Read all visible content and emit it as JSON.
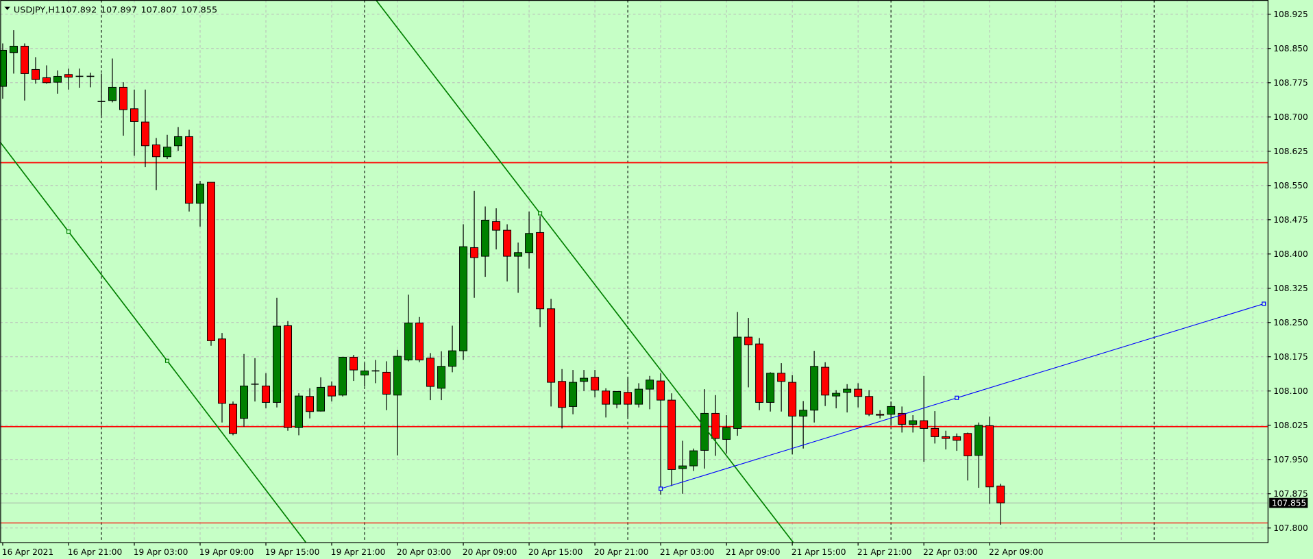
{
  "header": {
    "symbol": "USDJPY,H1",
    "open": "107.892",
    "high": "107.897",
    "low": "107.807",
    "close": "107.855"
  },
  "colors": {
    "background": "#c6ffc6",
    "bull_body": "#008000",
    "bear_body": "#ff0000",
    "grid": "#b8b8b8",
    "hline": "#ff0000",
    "trendline_down": "#008000",
    "trendline_up": "#0000ff"
  },
  "chart_data": {
    "type": "candlestick",
    "symbol": "USDJPY",
    "timeframe": "H1",
    "ylim": [
      107.775,
      108.96
    ],
    "grid": true,
    "price_ticks": [
      "108.925",
      "108.850",
      "108.775",
      "108.700",
      "108.625",
      "108.550",
      "108.475",
      "108.400",
      "108.325",
      "108.250",
      "108.175",
      "108.100",
      "108.025",
      "107.950",
      "107.875",
      "107.800"
    ],
    "time_labels": [
      {
        "time": "16 Apr 15:00",
        "label": "16 Apr 2021"
      },
      {
        "time": "16 Apr 21:00",
        "label": "16 Apr 21:00"
      },
      {
        "time": "19 Apr 03:00",
        "label": "19 Apr 03:00"
      },
      {
        "time": "19 Apr 09:00",
        "label": "19 Apr 09:00"
      },
      {
        "time": "19 Apr 15:00",
        "label": "19 Apr 15:00"
      },
      {
        "time": "19 Apr 21:00",
        "label": "19 Apr 21:00"
      },
      {
        "time": "20 Apr 03:00",
        "label": "20 Apr 03:00"
      },
      {
        "time": "20 Apr 09:00",
        "label": "20 Apr 09:00"
      },
      {
        "time": "20 Apr 15:00",
        "label": "20 Apr 15:00"
      },
      {
        "time": "20 Apr 21:00",
        "label": "20 Apr 21:00"
      },
      {
        "time": "21 Apr 03:00",
        "label": "21 Apr 03:00"
      },
      {
        "time": "21 Apr 09:00",
        "label": "21 Apr 09:00"
      },
      {
        "time": "21 Apr 15:00",
        "label": "21 Apr 15:00"
      },
      {
        "time": "21 Apr 21:00",
        "label": "21 Apr 21:00"
      },
      {
        "time": "22 Apr 03:00",
        "label": "22 Apr 03:00"
      },
      {
        "time": "22 Apr 09:00",
        "label": "22 Apr 09:00"
      }
    ],
    "current_price": "107.855",
    "candles_columns": [
      "time",
      "open",
      "high",
      "low",
      "close"
    ],
    "candles": [
      [
        "16 Apr 15:00",
        108.767,
        108.861,
        108.74,
        108.846
      ],
      [
        "16 Apr 16:00",
        108.841,
        108.89,
        108.795,
        108.855
      ],
      [
        "16 Apr 17:00",
        108.855,
        108.861,
        108.736,
        108.795
      ],
      [
        "16 Apr 18:00",
        108.804,
        108.831,
        108.773,
        108.782
      ],
      [
        "16 Apr 19:00",
        108.786,
        108.813,
        108.773,
        108.775
      ],
      [
        "16 Apr 20:00",
        108.776,
        108.802,
        108.751,
        108.789
      ],
      [
        "16 Apr 21:00",
        108.793,
        108.806,
        108.76,
        108.787
      ],
      [
        "16 Apr 22:00",
        108.789,
        108.806,
        108.764,
        108.789
      ],
      [
        "16 Apr 23:00",
        108.789,
        108.797,
        108.765,
        108.789
      ],
      [
        "19 Apr 00:00",
        108.734,
        108.795,
        108.703,
        108.734
      ],
      [
        "19 Apr 01:00",
        108.736,
        108.828,
        108.732,
        108.765
      ],
      [
        "19 Apr 02:00",
        108.765,
        108.776,
        108.659,
        108.716
      ],
      [
        "19 Apr 03:00",
        108.718,
        108.76,
        108.615,
        108.69
      ],
      [
        "19 Apr 04:00",
        108.689,
        108.76,
        108.59,
        108.637
      ],
      [
        "19 Apr 05:00",
        108.639,
        108.654,
        108.54,
        108.613
      ],
      [
        "19 Apr 06:00",
        108.613,
        108.661,
        108.608,
        108.634
      ],
      [
        "19 Apr 07:00",
        108.637,
        108.678,
        108.626,
        108.657
      ],
      [
        "19 Apr 08:00",
        108.657,
        108.672,
        108.493,
        108.511
      ],
      [
        "19 Apr 09:00",
        108.511,
        108.56,
        108.46,
        108.553
      ],
      [
        "19 Apr 10:00",
        108.557,
        108.557,
        108.199,
        108.21
      ],
      [
        "19 Apr 11:00",
        108.214,
        108.227,
        108.031,
        108.073
      ],
      [
        "19 Apr 12:00",
        108.071,
        108.077,
        108.003,
        108.007
      ],
      [
        "19 Apr 13:00",
        108.04,
        108.181,
        108.022,
        108.111
      ],
      [
        "19 Apr 14:00",
        108.115,
        108.172,
        108.077,
        108.115
      ],
      [
        "19 Apr 15:00",
        108.111,
        108.139,
        108.062,
        108.075
      ],
      [
        "19 Apr 16:00",
        108.075,
        108.304,
        108.064,
        108.242
      ],
      [
        "19 Apr 17:00",
        108.243,
        108.253,
        108.013,
        108.02
      ],
      [
        "19 Apr 18:00",
        108.02,
        108.095,
        108.003,
        108.089
      ],
      [
        "19 Apr 19:00",
        108.088,
        108.106,
        108.04,
        108.055
      ],
      [
        "19 Apr 20:00",
        108.056,
        108.13,
        108.055,
        108.108
      ],
      [
        "19 Apr 21:00",
        108.111,
        108.121,
        108.077,
        108.089
      ],
      [
        "19 Apr 22:00",
        108.091,
        108.174,
        108.088,
        108.174
      ],
      [
        "19 Apr 23:00",
        108.174,
        108.179,
        108.122,
        108.146
      ],
      [
        "20 Apr 00:00",
        108.135,
        108.161,
        108.11,
        108.144
      ],
      [
        "20 Apr 01:00",
        108.144,
        108.168,
        108.117,
        108.144
      ],
      [
        "20 Apr 02:00",
        108.141,
        108.165,
        108.058,
        108.093
      ],
      [
        "20 Apr 03:00",
        108.091,
        108.19,
        107.959,
        108.176
      ],
      [
        "20 Apr 04:00",
        108.168,
        108.311,
        108.165,
        108.249
      ],
      [
        "20 Apr 05:00",
        108.249,
        108.262,
        108.163,
        108.168
      ],
      [
        "20 Apr 06:00",
        108.172,
        108.183,
        108.08,
        108.11
      ],
      [
        "20 Apr 07:00",
        108.106,
        108.187,
        108.08,
        108.154
      ],
      [
        "20 Apr 08:00",
        108.154,
        108.243,
        108.141,
        108.188
      ],
      [
        "20 Apr 09:00",
        108.188,
        108.465,
        108.168,
        108.416
      ],
      [
        "20 Apr 10:00",
        108.414,
        108.538,
        108.304,
        108.392
      ],
      [
        "20 Apr 11:00",
        108.395,
        108.504,
        108.35,
        108.474
      ],
      [
        "20 Apr 12:00",
        108.471,
        108.5,
        108.41,
        108.452
      ],
      [
        "20 Apr 13:00",
        108.452,
        108.465,
        108.34,
        108.395
      ],
      [
        "20 Apr 14:00",
        108.395,
        108.425,
        108.315,
        108.403
      ],
      [
        "20 Apr 15:00",
        108.403,
        108.493,
        108.368,
        108.445
      ],
      [
        "20 Apr 16:00",
        108.447,
        108.483,
        108.24,
        108.28
      ],
      [
        "20 Apr 17:00",
        108.28,
        108.302,
        108.066,
        108.119
      ],
      [
        "20 Apr 18:00",
        108.121,
        108.148,
        108.018,
        108.064
      ],
      [
        "20 Apr 19:00",
        108.066,
        108.146,
        108.049,
        108.119
      ],
      [
        "20 Apr 20:00",
        108.121,
        108.146,
        108.1,
        108.128
      ],
      [
        "20 Apr 21:00",
        108.13,
        108.146,
        108.086,
        108.102
      ],
      [
        "20 Apr 22:00",
        108.1,
        108.106,
        108.042,
        108.071
      ],
      [
        "20 Apr 23:00",
        108.071,
        108.099,
        108.062,
        108.099
      ],
      [
        "21 Apr 00:00",
        108.097,
        108.13,
        108.042,
        108.071
      ],
      [
        "21 Apr 01:00",
        108.071,
        108.117,
        108.064,
        108.104
      ],
      [
        "21 Apr 02:00",
        108.104,
        108.133,
        108.06,
        108.124
      ],
      [
        "21 Apr 03:00",
        108.122,
        108.139,
        107.873,
        108.08
      ],
      [
        "21 Apr 04:00",
        108.08,
        108.095,
        107.892,
        107.928
      ],
      [
        "21 Apr 05:00",
        107.93,
        107.991,
        107.875,
        107.936
      ],
      [
        "21 Apr 06:00",
        107.936,
        107.974,
        107.925,
        107.969
      ],
      [
        "21 Apr 07:00",
        107.97,
        108.104,
        107.93,
        108.051
      ],
      [
        "21 Apr 08:00",
        108.051,
        108.091,
        107.958,
        107.996
      ],
      [
        "21 Apr 09:00",
        107.994,
        108.047,
        107.963,
        108.02
      ],
      [
        "21 Apr 10:00",
        108.018,
        108.273,
        108.002,
        108.218
      ],
      [
        "21 Apr 11:00",
        108.218,
        108.26,
        108.108,
        108.201
      ],
      [
        "21 Apr 12:00",
        108.203,
        108.216,
        108.058,
        108.075
      ],
      [
        "21 Apr 13:00",
        108.075,
        108.141,
        108.055,
        108.139
      ],
      [
        "21 Apr 14:00",
        108.139,
        108.161,
        108.055,
        108.121
      ],
      [
        "21 Apr 15:00",
        108.119,
        108.135,
        107.961,
        108.045
      ],
      [
        "21 Apr 16:00",
        108.045,
        108.078,
        107.974,
        108.058
      ],
      [
        "21 Apr 17:00",
        108.058,
        108.188,
        108.031,
        108.154
      ],
      [
        "21 Apr 18:00",
        108.152,
        108.163,
        108.067,
        108.091
      ],
      [
        "21 Apr 19:00",
        108.089,
        108.102,
        108.062,
        108.095
      ],
      [
        "21 Apr 20:00",
        108.097,
        108.115,
        108.053,
        108.104
      ],
      [
        "21 Apr 21:00",
        108.104,
        108.117,
        108.064,
        108.088
      ],
      [
        "21 Apr 22:00",
        108.088,
        108.102,
        108.045,
        108.049
      ],
      [
        "21 Apr 23:00",
        108.049,
        108.058,
        108.04,
        108.047
      ],
      [
        "22 Apr 00:00",
        108.049,
        108.077,
        108.024,
        108.066
      ],
      [
        "22 Apr 01:00",
        108.051,
        108.066,
        108.009,
        108.027
      ],
      [
        "22 Apr 02:00",
        108.027,
        108.047,
        108.009,
        108.035
      ],
      [
        "22 Apr 03:00",
        108.035,
        108.133,
        107.945,
        108.018
      ],
      [
        "22 Apr 04:00",
        108.018,
        108.056,
        107.985,
        108.0
      ],
      [
        "22 Apr 05:00",
        108.0,
        108.013,
        107.972,
        107.996
      ],
      [
        "22 Apr 06:00",
        108.0,
        108.007,
        107.969,
        107.992
      ],
      [
        "22 Apr 07:00",
        108.007,
        108.009,
        107.904,
        107.958
      ],
      [
        "22 Apr 08:00",
        107.959,
        108.031,
        107.888,
        108.025
      ],
      [
        "22 Apr 09:00",
        108.024,
        108.044,
        107.853,
        107.89
      ],
      [
        "22 Apr 10:00",
        107.892,
        107.897,
        107.807,
        107.855
      ]
    ],
    "horizontal_lines": [
      {
        "price": 108.6,
        "color": "#ff0000"
      },
      {
        "price": 108.022,
        "color": "#ff0000"
      },
      {
        "price": 107.811,
        "color": "#ff0000"
      }
    ],
    "trendlines": [
      {
        "color": "#008000",
        "extend": true,
        "points": [
          {
            "time": "16 Apr 21:00",
            "price": 108.449
          },
          {
            "time": "19 Apr 06:00",
            "price": 108.166
          }
        ],
        "markers": [
          0,
          1
        ]
      },
      {
        "color": "#008000",
        "extend": true,
        "points": [
          {
            "time": "20 Apr 16:00",
            "price": 108.489
          },
          {
            "time": "21 Apr 15:00",
            "price": 107.771
          }
        ],
        "markers": [
          0
        ]
      },
      {
        "color": "#0000ff",
        "extend": false,
        "points": [
          {
            "time": "21 Apr 03:00",
            "price": 107.886
          },
          {
            "time": "22 Apr 06:00",
            "price": 108.085
          },
          {
            "time": "23 Apr 10:00",
            "price": 108.291
          }
        ],
        "markers": [
          0,
          1,
          2
        ]
      }
    ]
  }
}
